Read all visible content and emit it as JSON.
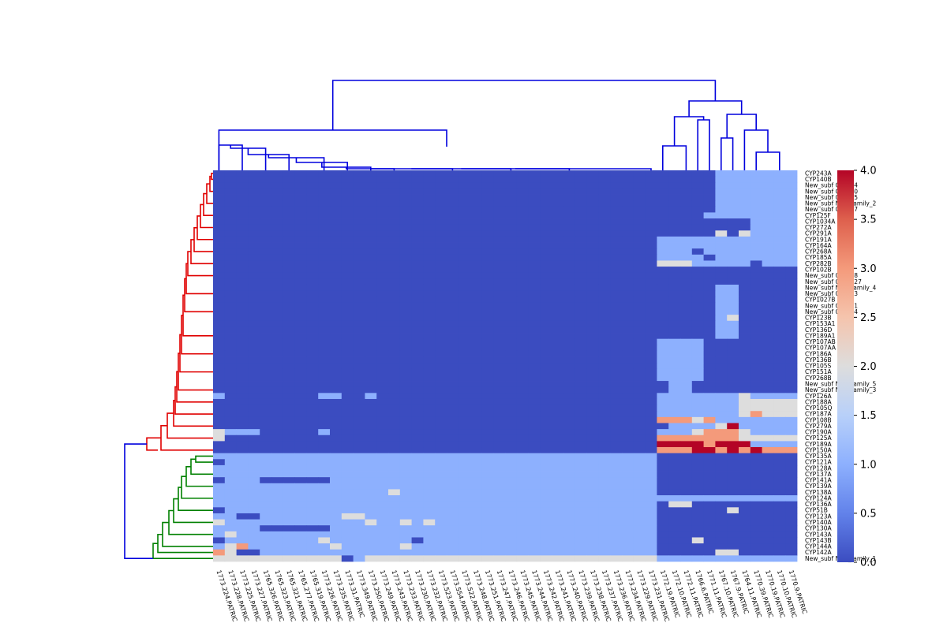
{
  "chart_data": {
    "type": "heatmap",
    "title": "",
    "row_labels": [
      "CYP243A",
      "CYP140B",
      "New_subf CYP144",
      "New_subf CYP150",
      "New_subf CYP105",
      "New_subf New_family_2",
      "New_subf CYP187",
      "CYP125F",
      "CYP1034A",
      "CYP272A",
      "CYP291A",
      "CYP191A",
      "CYP164A",
      "CYP268A",
      "CYP185A",
      "CYP282B",
      "CYP102B",
      "New_subf CYP188",
      "New_subf CYP1027",
      "New_subf New_family_4",
      "New_subf CYP143",
      "CYP1027B",
      "New_subf CYP291",
      "New_subf CYP124",
      "CYP123B",
      "CYP153A1",
      "CYP136D",
      "CYP189A1",
      "CYP107AB",
      "CYP107AA",
      "CYP186A",
      "CYP136B",
      "CYP105S",
      "CYP151A",
      "CYP268B",
      "New_subf New_family_5",
      "New_subf New_family_3",
      "CYP126A",
      "CYP188A",
      "CYP105Q",
      "CYP187A",
      "CYP108B",
      "CYP279A",
      "CYP190A",
      "CYP125A",
      "CYP189A",
      "CYP150A",
      "CYP135A",
      "CYP121A",
      "CYP128A",
      "CYP137A",
      "CYP141A",
      "CYP139A",
      "CYP138A",
      "CYP124A",
      "CYP136A",
      "CYP51B",
      "CYP123A",
      "CYP140A",
      "CYP130A",
      "CYP143A",
      "CYP143B",
      "CYP144A",
      "CYP142A",
      "New_subf New_family_1"
    ],
    "column_labels": [
      "1773.224.PATRIC",
      "1773.228.PATRIC",
      "1773.225.PATRIC",
      "1773.227.PATRIC",
      "1765.326.PATRIC",
      "1765.323.PATRIC",
      "1765.321.PATRIC",
      "1765.277.PATRIC",
      "1765.319.PATRIC",
      "1773.226.PATRIC",
      "1773.235.PATRIC",
      "1773.31.PATRIC",
      "1773.349.PATRIC",
      "1773.250.PATRIC",
      "1773.249.PATRIC",
      "1773.243.PATRIC",
      "1773.233.PATRIC",
      "1773.230.PATRIC",
      "1773.232.PATRIC",
      "1773.523.PATRIC",
      "1773.554.PATRIC",
      "1773.522.PATRIC",
      "1773.248.PATRIC",
      "1773.251.PATRIC",
      "1773.247.PATRIC",
      "1773.246.PATRIC",
      "1773.245.PATRIC",
      "1773.244.PATRIC",
      "1773.242.PATRIC",
      "1773.241.PATRIC",
      "1773.240.PATRIC",
      "1773.239.PATRIC",
      "1773.238.PATRIC",
      "1773.237.PATRIC",
      "1773.236.PATRIC",
      "1773.234.PATRIC",
      "1773.229.PATRIC",
      "1773.231.PATRIC",
      "1772.19.PATRIC",
      "1772.10.PATRIC",
      "1772.11.PATRIC",
      "1766.6.PATRIC",
      "1771.11.PATRIC",
      "1767.10.PATRIC",
      "1767.9.PATRIC",
      "1764.11.PATRIC",
      "1770.39.PATRIC",
      "1770.19.PATRIC",
      "1770.10.PATRIC",
      "1770.9.PATRIC"
    ],
    "color_scale": "coolwarm",
    "vmin": 0.0,
    "vmax": 4.0,
    "colorbar_ticks": [
      "0.0",
      "0.5",
      "1.0",
      "1.5",
      "2.0",
      "2.5",
      "3.0",
      "3.5",
      "4.0"
    ],
    "row_dendrogram_colors": [
      "#e00000",
      "#008000",
      "#0000dd"
    ],
    "column_dendrogram_color": "#0000dd",
    "values": []
  }
}
